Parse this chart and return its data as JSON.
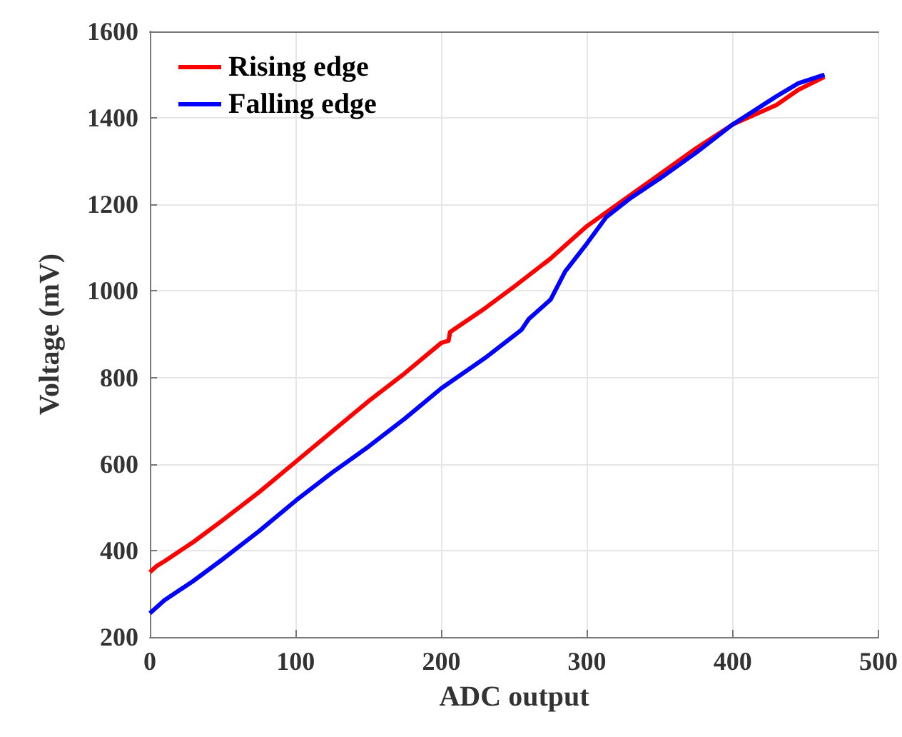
{
  "chart_data": {
    "type": "line",
    "xlabel": "ADC output",
    "ylabel": "Voltage (mV)",
    "xlim": [
      0,
      500
    ],
    "xticks": [
      0,
      100,
      200,
      300,
      400,
      500
    ],
    "ylim": [
      200,
      1600
    ],
    "yticks": [
      200,
      400,
      600,
      800,
      1000,
      1200,
      1400,
      1600
    ],
    "grid": true,
    "legend": "top left",
    "marker": "none",
    "line_style": "solid",
    "series": [
      {
        "name": "Rising edge",
        "color": "#ff0000",
        "x": [
          0,
          5,
          10,
          30,
          50,
          75,
          100,
          125,
          150,
          175,
          200,
          205,
          206,
          230,
          250,
          275,
          300,
          325,
          350,
          375,
          400,
          430,
          445,
          463
        ],
        "values": [
          350,
          365,
          375,
          420,
          470,
          535,
          605,
          675,
          745,
          810,
          880,
          885,
          905,
          960,
          1010,
          1075,
          1150,
          1210,
          1270,
          1330,
          1385,
          1430,
          1465,
          1495
        ]
      },
      {
        "name": "Falling edge",
        "color": "#0000ff",
        "x": [
          0,
          10,
          30,
          50,
          75,
          100,
          125,
          150,
          175,
          200,
          230,
          255,
          260,
          275,
          285,
          300,
          313,
          330,
          350,
          375,
          400,
          430,
          445,
          463
        ],
        "values": [
          255,
          285,
          330,
          380,
          445,
          515,
          580,
          640,
          705,
          775,
          845,
          910,
          935,
          980,
          1045,
          1110,
          1170,
          1215,
          1260,
          1320,
          1385,
          1450,
          1480,
          1500
        ]
      }
    ]
  }
}
